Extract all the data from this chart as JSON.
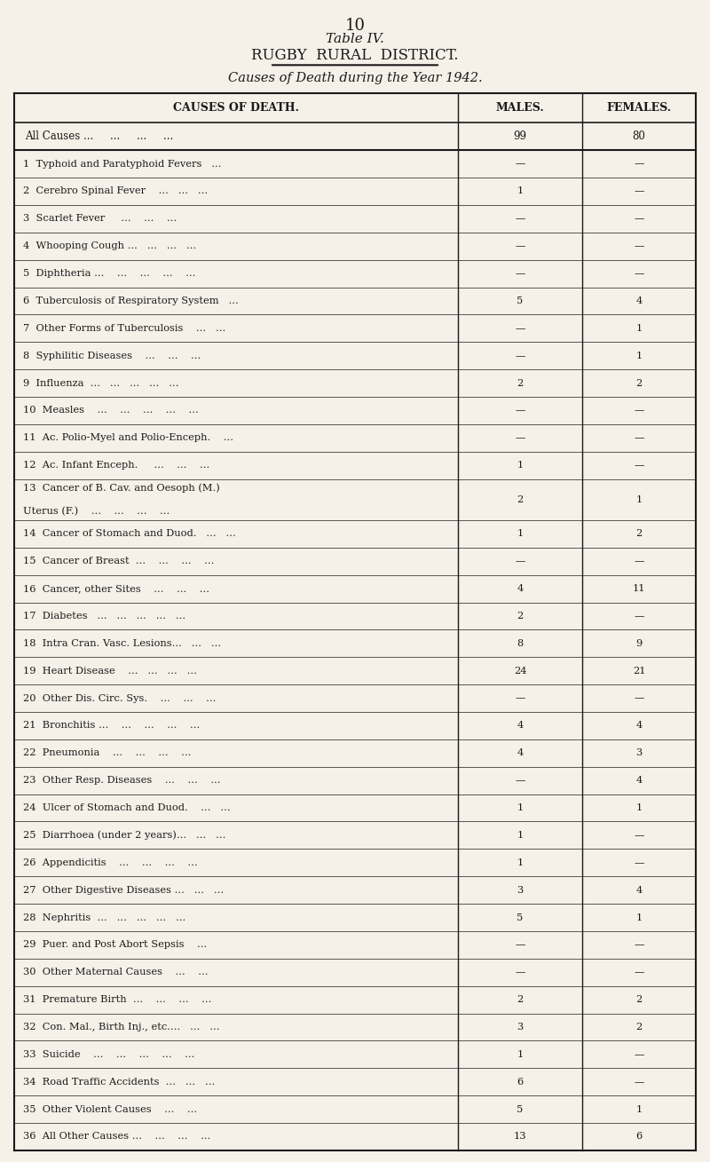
{
  "page_number": "10",
  "title_line1": "Table IV.",
  "title_line2": "RUGBY  RURAL  DISTRICT.",
  "subtitle": "Causes of Death during the Year 1942.",
  "col_headers": [
    "CAUSES OF DEATH.",
    "MALES.",
    "FEMALES."
  ],
  "header_row": [
    "All Causes ...     ...     ...     ...",
    "99",
    "80"
  ],
  "rows": [
    [
      "1  Typhoid and Paratyphoid Fevers   ...",
      "—",
      "—"
    ],
    [
      "2  Cerebro Spinal Fever    ...   ...   ...",
      "1",
      "—"
    ],
    [
      "3  Scarlet Fever     ...    ...    ...",
      "—",
      "—"
    ],
    [
      "4  Whooping Cough ...   ...   ...   ...",
      "—",
      "—"
    ],
    [
      "5  Diphtheria ...    ...    ...    ...    ...",
      "—",
      "—"
    ],
    [
      "6  Tuberculosis of Respiratory System   ...",
      "5",
      "4"
    ],
    [
      "7  Other Forms of Tuberculosis    ...   ...",
      "—",
      "1"
    ],
    [
      "8  Syphilitic Diseases    ...    ...    ...",
      "—",
      "1"
    ],
    [
      "9  Influenza  ...   ...   ...   ...   ...",
      "2",
      "2"
    ],
    [
      "10  Measles    ...    ...    ...    ...    ...",
      "—",
      "—"
    ],
    [
      "11  Ac. Polio-Myel and Polio-Enceph.    ...",
      "—",
      "—"
    ],
    [
      "12  Ac. Infant Enceph.     ...    ...    ...",
      "1",
      "—"
    ],
    [
      "13  Cancer of B. Cav. and Oesoph (M.)\n     Uterus (F.)    ...    ...    ...    ...",
      "2",
      "1"
    ],
    [
      "14  Cancer of Stomach and Duod.   ...   ...",
      "1",
      "2"
    ],
    [
      "15  Cancer of Breast  ...    ...    ...    ...",
      "—",
      "—"
    ],
    [
      "16  Cancer, other Sites    ...    ...    ...",
      "4",
      "11"
    ],
    [
      "17  Diabetes   ...   ...   ...   ...   ...",
      "2",
      "—"
    ],
    [
      "18  Intra Cran. Vasc. Lesions...   ...   ...",
      "8",
      "9"
    ],
    [
      "19  Heart Disease    ...   ...   ...   ...",
      "24",
      "21"
    ],
    [
      "20  Other Dis. Circ. Sys.    ...    ...    ...",
      "—",
      "—"
    ],
    [
      "21  Bronchitis ...    ...    ...    ...    ...",
      "4",
      "4"
    ],
    [
      "22  Pneumonia    ...    ...    ...    ...",
      "4",
      "3"
    ],
    [
      "23  Other Resp. Diseases    ...    ...    ...",
      "—",
      "4"
    ],
    [
      "24  Ulcer of Stomach and Duod.    ...   ...",
      "1",
      "1"
    ],
    [
      "25  Diarrhoea (under 2 years)...   ...   ...",
      "1",
      "—"
    ],
    [
      "26  Appendicitis    ...    ...    ...    ...",
      "1",
      "—"
    ],
    [
      "27  Other Digestive Diseases ...   ...   ...",
      "3",
      "4"
    ],
    [
      "28  Nephritis  ...   ...   ...   ...   ...",
      "5",
      "1"
    ],
    [
      "29  Puer. and Post Abort Sepsis    ...",
      "—",
      "—"
    ],
    [
      "30  Other Maternal Causes    ...    ...",
      "—",
      "—"
    ],
    [
      "31  Premature Birth  ...    ...    ...    ...",
      "2",
      "2"
    ],
    [
      "32  Con. Mal., Birth Inj., etc....   ...   ...",
      "3",
      "2"
    ],
    [
      "33  Suicide    ...    ...    ...    ...    ...",
      "1",
      "—"
    ],
    [
      "34  Road Traffic Accidents  ...   ...   ...",
      "6",
      "—"
    ],
    [
      "35  Other Violent Causes    ...    ...",
      "5",
      "1"
    ],
    [
      "36  All Other Causes ...    ...    ...    ...",
      "13",
      "6"
    ]
  ],
  "bg_color": "#f5f0e8",
  "text_color": "#1a1a1a",
  "border_color": "#1a1a1a"
}
